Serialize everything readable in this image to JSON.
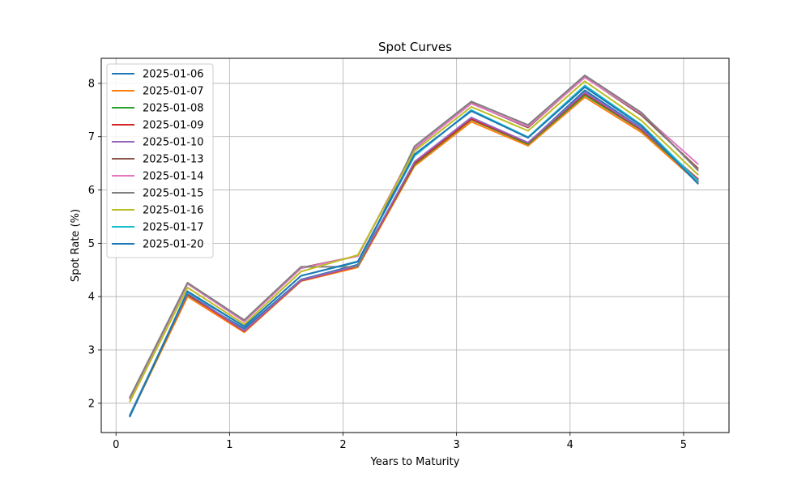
{
  "chart_data": {
    "type": "line",
    "title": "Spot Curves",
    "xlabel": "Years to Maturity",
    "ylabel": "Spot Rate (%)",
    "xlim": [
      -0.13,
      5.4
    ],
    "ylim": [
      1.45,
      8.47
    ],
    "xticks": [
      0,
      1,
      2,
      3,
      4,
      5
    ],
    "yticks": [
      2,
      3,
      4,
      5,
      6,
      7,
      8
    ],
    "grid": true,
    "legend_position": "top-left",
    "x": [
      0.12,
      0.63,
      1.13,
      1.63,
      2.13,
      2.63,
      3.13,
      3.63,
      4.13,
      4.63,
      5.13
    ],
    "series": [
      {
        "name": "2025-01-06",
        "color": "#1f77b4",
        "values": [
          1.75,
          4.02,
          3.4,
          4.32,
          4.6,
          6.5,
          7.35,
          6.88,
          7.87,
          7.16,
          6.15
        ]
      },
      {
        "name": "2025-01-07",
        "color": "#ff7f0e",
        "values": [
          1.75,
          4.0,
          3.33,
          4.29,
          4.55,
          6.45,
          7.28,
          6.83,
          7.74,
          7.08,
          6.13
        ]
      },
      {
        "name": "2025-01-08",
        "color": "#2ca02c",
        "values": [
          1.75,
          4.05,
          3.36,
          4.3,
          4.58,
          6.48,
          7.32,
          6.86,
          7.78,
          7.12,
          6.17
        ]
      },
      {
        "name": "2025-01-09",
        "color": "#d62728",
        "values": [
          1.77,
          4.05,
          3.35,
          4.3,
          4.57,
          6.5,
          7.33,
          6.88,
          7.81,
          7.13,
          6.2
        ]
      },
      {
        "name": "2025-01-10",
        "color": "#9467bd",
        "values": [
          1.77,
          4.07,
          3.36,
          4.31,
          4.58,
          6.53,
          7.36,
          6.89,
          7.83,
          7.15,
          6.18
        ]
      },
      {
        "name": "2025-01-13",
        "color": "#8c564b",
        "values": [
          2.08,
          4.25,
          3.55,
          4.54,
          4.76,
          6.77,
          7.63,
          7.17,
          8.12,
          7.4,
          6.4
        ]
      },
      {
        "name": "2025-01-14",
        "color": "#e377c2",
        "values": [
          2.07,
          4.24,
          3.53,
          4.53,
          4.76,
          6.78,
          7.62,
          7.19,
          8.11,
          7.43,
          6.48
        ]
      },
      {
        "name": "2025-01-15",
        "color": "#7f7f7f",
        "values": [
          2.1,
          4.26,
          3.56,
          4.56,
          4.56,
          6.82,
          7.66,
          7.22,
          8.15,
          7.45,
          6.36
        ]
      },
      {
        "name": "2025-01-16",
        "color": "#bcbd22",
        "values": [
          2.02,
          4.17,
          3.48,
          4.47,
          4.78,
          6.73,
          7.56,
          7.11,
          8.04,
          7.3,
          6.28
        ]
      },
      {
        "name": "2025-01-17",
        "color": "#17becf",
        "values": [
          1.76,
          4.08,
          3.44,
          4.39,
          4.65,
          6.64,
          7.5,
          6.99,
          7.96,
          7.22,
          6.16
        ]
      },
      {
        "name": "2025-01-20",
        "color": "#1f77b4",
        "values": [
          1.74,
          4.1,
          3.44,
          4.39,
          4.66,
          6.67,
          7.48,
          6.98,
          7.93,
          7.2,
          6.11
        ]
      }
    ]
  }
}
